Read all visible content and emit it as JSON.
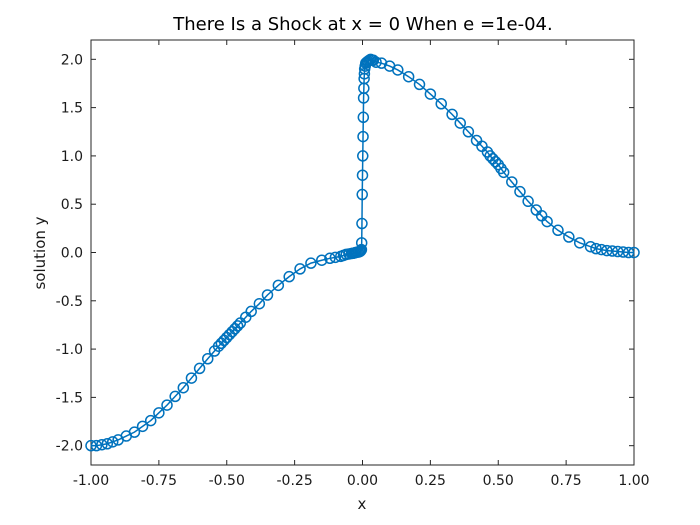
{
  "chart_data": {
    "type": "line",
    "title": "There Is a Shock at x = 0 When e =1e-04.",
    "xlabel": "x",
    "ylabel": "solution y",
    "xlim": [
      -1.0,
      1.0
    ],
    "ylim": [
      -2.2,
      2.2
    ],
    "x_ticks": [
      "-1.00",
      "-0.75",
      "-0.50",
      "-0.25",
      "0.00",
      "0.25",
      "0.50",
      "0.75",
      "1.00"
    ],
    "y_ticks": [
      "-2.0",
      "-1.5",
      "-1.0",
      "-0.5",
      "0.0",
      "0.5",
      "1.0",
      "1.5",
      "2.0"
    ],
    "grid": false,
    "color": "#0072BD",
    "marker": "circle-open",
    "series": [
      {
        "x": [
          -1.0,
          -0.98,
          -0.96,
          -0.94,
          -0.92,
          -0.9,
          -0.87,
          -0.84,
          -0.81,
          -0.78,
          -0.75,
          -0.72,
          -0.69,
          -0.66,
          -0.63,
          -0.6,
          -0.57,
          -0.545,
          -0.53,
          -0.52,
          -0.51,
          -0.5,
          -0.49,
          -0.48,
          -0.47,
          -0.46,
          -0.45,
          -0.43,
          -0.41,
          -0.38,
          -0.35,
          -0.31,
          -0.27,
          -0.23,
          -0.19,
          -0.15,
          -0.12,
          -0.1,
          -0.08,
          -0.07,
          -0.06,
          -0.05,
          -0.04,
          -0.035,
          -0.03,
          -0.025,
          -0.02,
          -0.015,
          -0.01,
          -0.008,
          -0.006,
          -0.004,
          -0.003,
          -0.002,
          -0.001,
          0.0,
          0.001,
          0.002,
          0.003,
          0.004,
          0.005,
          0.006,
          0.007,
          0.008,
          0.01,
          0.012,
          0.016,
          0.02,
          0.025,
          0.03,
          0.035,
          0.04,
          0.05,
          0.07,
          0.1,
          0.13,
          0.17,
          0.21,
          0.25,
          0.29,
          0.33,
          0.36,
          0.39,
          0.42,
          0.44,
          0.46,
          0.47,
          0.48,
          0.49,
          0.5,
          0.51,
          0.52,
          0.55,
          0.58,
          0.61,
          0.64,
          0.66,
          0.68,
          0.72,
          0.76,
          0.8,
          0.84,
          0.86,
          0.88,
          0.9,
          0.92,
          0.94,
          0.96,
          0.98,
          1.0
        ],
        "y": [
          -2.0,
          -2.0,
          -1.99,
          -1.98,
          -1.96,
          -1.94,
          -1.9,
          -1.86,
          -1.8,
          -1.74,
          -1.66,
          -1.58,
          -1.49,
          -1.4,
          -1.3,
          -1.2,
          -1.1,
          -1.02,
          -0.97,
          -0.94,
          -0.91,
          -0.88,
          -0.85,
          -0.82,
          -0.79,
          -0.76,
          -0.73,
          -0.67,
          -0.61,
          -0.53,
          -0.44,
          -0.34,
          -0.25,
          -0.17,
          -0.11,
          -0.08,
          -0.06,
          -0.05,
          -0.04,
          -0.03,
          -0.02,
          -0.015,
          -0.01,
          -0.008,
          -0.005,
          0.0,
          0.003,
          0.005,
          0.01,
          0.015,
          0.02,
          0.03,
          0.1,
          0.3,
          0.6,
          0.8,
          1.0,
          1.2,
          1.4,
          1.6,
          1.7,
          1.8,
          1.85,
          1.9,
          1.93,
          1.96,
          1.97,
          1.98,
          1.99,
          2.0,
          1.99,
          1.99,
          1.97,
          1.96,
          1.93,
          1.89,
          1.82,
          1.74,
          1.64,
          1.54,
          1.43,
          1.34,
          1.25,
          1.16,
          1.1,
          1.04,
          1.0,
          0.97,
          0.94,
          0.91,
          0.87,
          0.83,
          0.73,
          0.63,
          0.53,
          0.44,
          0.38,
          0.32,
          0.23,
          0.16,
          0.1,
          0.06,
          0.04,
          0.03,
          0.02,
          0.015,
          0.01,
          0.005,
          0.0,
          0.0
        ]
      }
    ]
  }
}
